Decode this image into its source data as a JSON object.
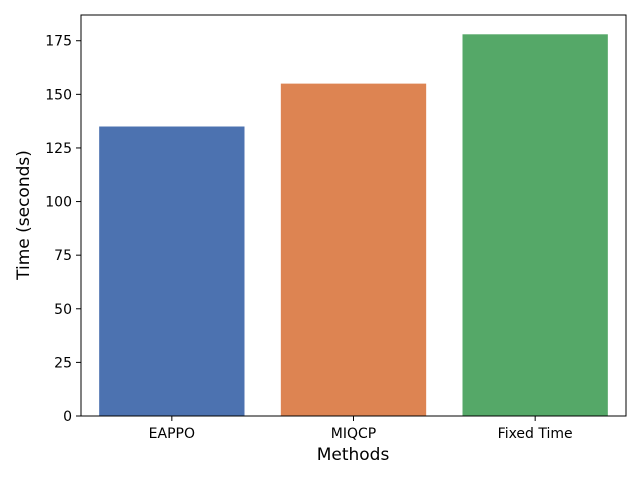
{
  "chart_data": {
    "type": "bar",
    "title": "",
    "xlabel": "Methods",
    "ylabel": "Time (seconds)",
    "categories": [
      "EAPPO",
      "MIQCP",
      "Fixed Time"
    ],
    "values": [
      135,
      155,
      178
    ],
    "colors": [
      "#4c72b0",
      "#dd8452",
      "#55a868"
    ],
    "ylim": [
      0,
      187
    ],
    "yticks": [
      0,
      25,
      50,
      75,
      100,
      125,
      150,
      175
    ],
    "grid": false,
    "legend": "none"
  }
}
